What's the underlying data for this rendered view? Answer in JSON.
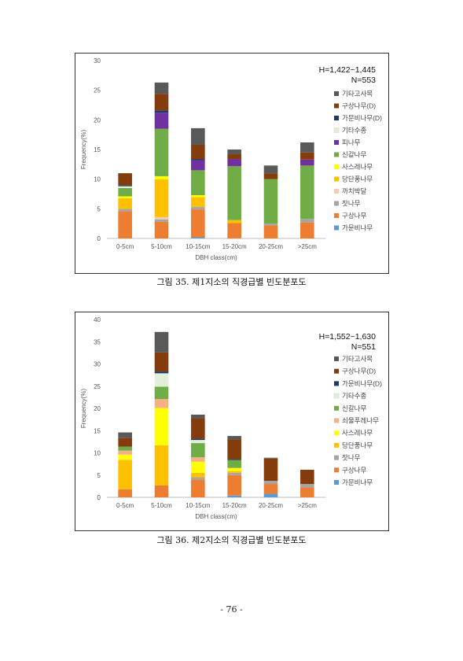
{
  "chart_data": [
    {
      "type": "bar",
      "stacked": true,
      "annotation": [
        "H=1,422~1,445",
        "N=553"
      ],
      "categories": [
        "0-5cm",
        "5-10cm",
        "10-15cm",
        "15-20cm",
        "20-25cm",
        ">25cm"
      ],
      "xlabel": "DBH class(cm)",
      "ylabel": "Frequency(%)",
      "ylim": [
        0,
        30
      ],
      "yticks": [
        0,
        5,
        10,
        15,
        20,
        25,
        30
      ],
      "grid": false,
      "legend_position": "right",
      "series": [
        {
          "name": "가문비나무",
          "color": "#5b9bd5",
          "values": [
            0,
            0,
            0.2,
            0,
            0,
            0
          ]
        },
        {
          "name": "구상나무",
          "color": "#ed7d31",
          "values": [
            4.6,
            2.8,
            4.7,
            2.6,
            2.2,
            2.7
          ]
        },
        {
          "name": "잣나무",
          "color": "#a5a5a5",
          "values": [
            0.4,
            0.4,
            0.4,
            0,
            0.3,
            0.6
          ]
        },
        {
          "name": "까치박달",
          "color": "#f8cbad",
          "values": [
            0,
            0.4,
            0,
            0,
            0,
            0
          ]
        },
        {
          "name": "당단풍나무",
          "color": "#ffc000",
          "values": [
            1.8,
            6.4,
            1.7,
            0.5,
            0,
            0
          ]
        },
        {
          "name": "사스레나무",
          "color": "#ffff00",
          "values": [
            0.3,
            0.5,
            0.3,
            0,
            0,
            0
          ]
        },
        {
          "name": "신갈나무",
          "color": "#70ad47",
          "values": [
            1.4,
            8.0,
            4.2,
            9.1,
            7.5,
            9.0
          ]
        },
        {
          "name": "피나무",
          "color": "#7030a0",
          "values": [
            0,
            2.7,
            1.7,
            1.2,
            0,
            1.0
          ]
        },
        {
          "name": "기타수종",
          "color": "#e2efda",
          "values": [
            0.3,
            0,
            0,
            0,
            0,
            0
          ]
        },
        {
          "name": "가문비나무(D)",
          "color": "#1f3864",
          "values": [
            0.2,
            0.4,
            0.2,
            0,
            0,
            0
          ]
        },
        {
          "name": "구상나무(D)",
          "color": "#843c0c",
          "values": [
            2.0,
            2.8,
            2.4,
            0.8,
            1.0,
            1.2
          ]
        },
        {
          "name": "기타고사목",
          "color": "#595959",
          "values": [
            0,
            1.9,
            2.8,
            0.8,
            1.3,
            1.7
          ]
        }
      ]
    },
    {
      "type": "bar",
      "stacked": true,
      "annotation": [
        "H=1,552~1,630",
        "N=551"
      ],
      "categories": [
        "0-5cm",
        "5-10cm",
        "10-15cm",
        "15-20cm",
        "20-25cm",
        ">25cm"
      ],
      "xlabel": "DBH class(cm)",
      "ylabel": "Frequency(%)",
      "ylim": [
        0,
        40
      ],
      "yticks": [
        0,
        5,
        10,
        15,
        20,
        25,
        30,
        35,
        40
      ],
      "grid": false,
      "legend_position": "right",
      "series": [
        {
          "name": "가문비나무",
          "color": "#5b9bd5",
          "values": [
            0,
            0,
            0,
            0.4,
            0.8,
            0
          ]
        },
        {
          "name": "구상나무",
          "color": "#ed7d31",
          "values": [
            1.8,
            2.7,
            4.0,
            4.6,
            2.2,
            2.2
          ]
        },
        {
          "name": "잣나무",
          "color": "#a5a5a5",
          "values": [
            0,
            0,
            0.5,
            0.5,
            0.7,
            0.8
          ]
        },
        {
          "name": "당단풍나무",
          "color": "#ffc000",
          "values": [
            6.6,
            9.0,
            1.0,
            0.4,
            0,
            0
          ]
        },
        {
          "name": "사스레나무",
          "color": "#ffff00",
          "values": [
            1.2,
            8.4,
            2.5,
            0.7,
            0,
            0
          ]
        },
        {
          "name": "쇠물푸레나무",
          "color": "#f4b183",
          "values": [
            0.9,
            2.0,
            1.0,
            0,
            0,
            0
          ]
        },
        {
          "name": "신갈나무",
          "color": "#70ad47",
          "values": [
            0.9,
            2.8,
            3.2,
            1.8,
            0,
            0
          ]
        },
        {
          "name": "기타수종",
          "color": "#e2efda",
          "values": [
            0,
            3.0,
            0.7,
            0,
            0,
            0
          ]
        },
        {
          "name": "가문비나무(D)",
          "color": "#1f3864",
          "values": [
            0,
            0.4,
            0.3,
            0.2,
            0,
            0
          ]
        },
        {
          "name": "구상나무(D)",
          "color": "#843c0c",
          "values": [
            2.0,
            4.3,
            4.6,
            4.4,
            5.0,
            3.2
          ]
        },
        {
          "name": "기타고사목",
          "color": "#595959",
          "values": [
            1.2,
            4.6,
            0.8,
            0.8,
            0.2,
            0
          ]
        }
      ]
    }
  ],
  "captions": [
    "그림 35. 제1지소의 직경급별 빈도분포도",
    "그림 36. 제2지소의 직경급별 빈도분포도"
  ],
  "page_number": "- 76 -"
}
